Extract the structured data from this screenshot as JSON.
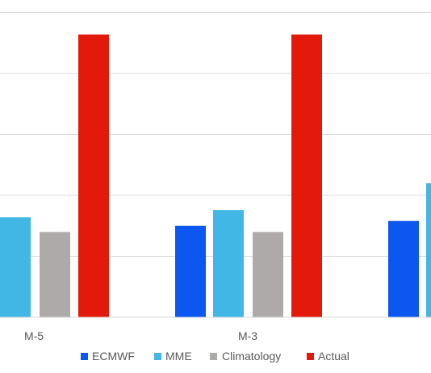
{
  "chart_data": {
    "type": "bar",
    "categories": [
      "M-5",
      "M-3",
      ""
    ],
    "series": [
      {
        "name": "ECMWF",
        "color": "#0B57F0",
        "values": [
          null,
          7.5,
          7.9
        ]
      },
      {
        "name": "MME",
        "color": "#41B7E6",
        "values": [
          8.2,
          8.8,
          11.0
        ]
      },
      {
        "name": "Climatology",
        "color": "#AEAAAA",
        "values": [
          7.0,
          7.0,
          null
        ]
      },
      {
        "name": "Actual",
        "color": "#E31A0B",
        "values": [
          23.2,
          23.2,
          null
        ]
      }
    ],
    "ylim": [
      0,
      25
    ],
    "gridlines": [
      0,
      5,
      10,
      15,
      20,
      25
    ],
    "grid": true,
    "legend_position": "bottom"
  }
}
